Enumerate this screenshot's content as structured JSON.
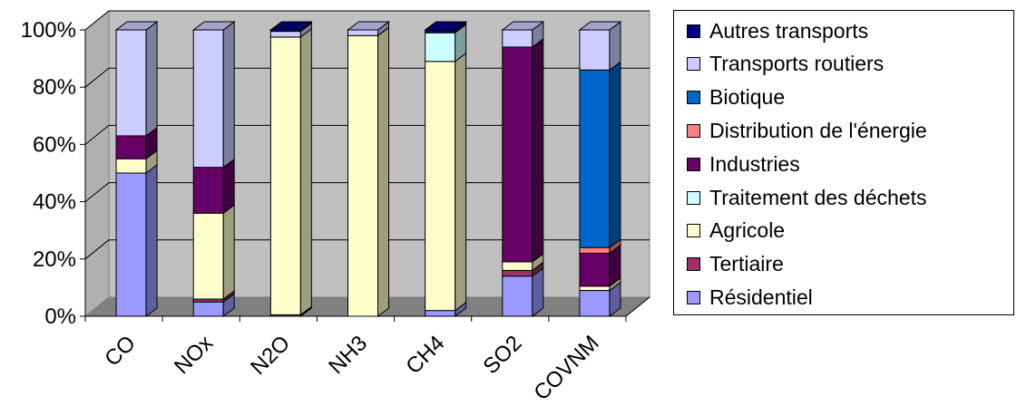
{
  "chart_data": {
    "type": "bar",
    "stacked": true,
    "percent": true,
    "three_d": true,
    "title": "",
    "xlabel": "",
    "ylabel": "",
    "ylim": [
      0,
      100
    ],
    "y_ticks": [
      "0%",
      "20%",
      "40%",
      "60%",
      "80%",
      "100%"
    ],
    "grid": true,
    "legend_position": "right",
    "categories": [
      "CO",
      "NOx",
      "N2O",
      "NH3",
      "CH4",
      "SO2",
      "COVNM"
    ],
    "series": [
      {
        "name": "Résidentiel",
        "color": "#9999ff",
        "values": [
          50,
          5,
          0,
          0,
          2,
          14,
          9
        ]
      },
      {
        "name": "Tertiaire",
        "color": "#993366",
        "values": [
          0,
          1,
          0.5,
          0,
          0,
          2,
          0
        ]
      },
      {
        "name": "Agricole",
        "color": "#ffffcc",
        "values": [
          5,
          30,
          97,
          98,
          87,
          3,
          1.5
        ]
      },
      {
        "name": "Traitement des déchets",
        "color": "#ccffff",
        "values": [
          0,
          0,
          0,
          0,
          10,
          0,
          0
        ]
      },
      {
        "name": "Industries",
        "color": "#660066",
        "values": [
          8,
          16,
          0,
          0,
          0,
          75,
          11.5
        ]
      },
      {
        "name": "Distribution de l'énergie",
        "color": "#ff8080",
        "values": [
          0,
          0,
          0,
          0,
          0,
          0,
          2
        ]
      },
      {
        "name": "Biotique",
        "color": "#0066cc",
        "values": [
          0,
          0,
          0,
          0,
          0,
          0,
          62
        ]
      },
      {
        "name": "Transports routiers",
        "color": "#ccccff",
        "values": [
          37,
          48,
          2,
          2,
          0,
          6,
          14
        ]
      },
      {
        "name": "Autres transports",
        "color": "#000080",
        "values": [
          0,
          0,
          0.5,
          0,
          1,
          0,
          0
        ]
      }
    ]
  }
}
